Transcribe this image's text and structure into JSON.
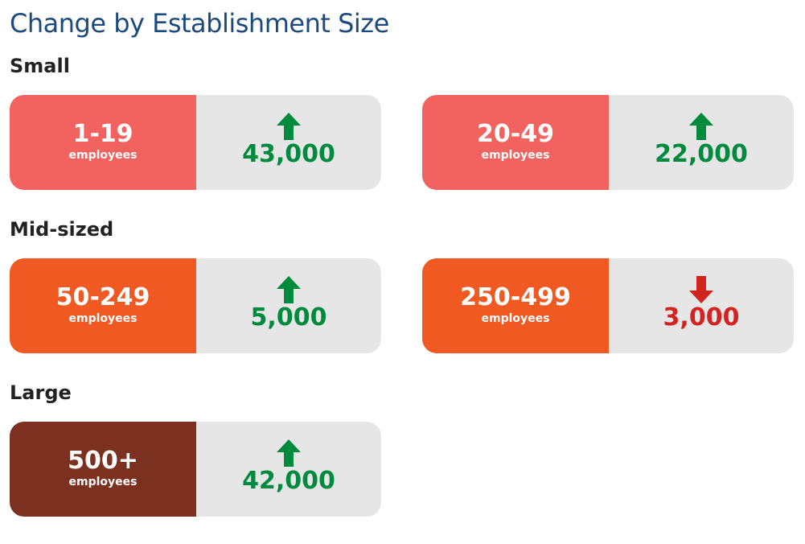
{
  "title": "Change by Establishment Size",
  "sections": [
    {
      "label": "Small",
      "cards": [
        {
          "range": "1-19",
          "unit": "employees",
          "value": "43,000"
        },
        {
          "range": "20-49",
          "unit": "employees",
          "value": "22,000"
        }
      ]
    },
    {
      "label": "Mid-sized",
      "cards": [
        {
          "range": "50-249",
          "unit": "employees",
          "value": "5,000"
        },
        {
          "range": "250-499",
          "unit": "employees",
          "value": "3,000"
        }
      ]
    },
    {
      "label": "Large",
      "cards": [
        {
          "range": "500+",
          "unit": "employees",
          "value": "42,000"
        }
      ]
    }
  ]
}
